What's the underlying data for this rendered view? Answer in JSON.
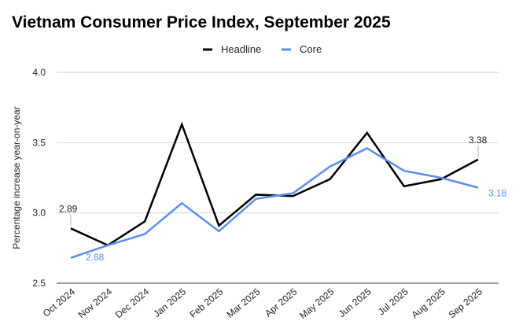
{
  "chart_data": {
    "type": "line",
    "title": "Vietnam Consumer Price Index, September 2025",
    "xlabel": "",
    "ylabel": "Percentage increase year-on-year",
    "ylim": [
      2.5,
      4.0
    ],
    "yticks": [
      "2.5",
      "3.0",
      "3.5",
      "4.0"
    ],
    "grid": true,
    "legend_position": "top",
    "categories": [
      "Oct 2024",
      "Nov 2024",
      "Dec 2024",
      "Jan 2025",
      "Feb 2025",
      "Mar 2025",
      "Apr 2025",
      "May 2025",
      "Jun 2025",
      "Jul 2025",
      "Aug 2025",
      "Sep 2025"
    ],
    "series": [
      {
        "name": "Headline",
        "color": "#000000",
        "values": [
          2.89,
          2.77,
          2.94,
          3.63,
          2.91,
          3.13,
          3.12,
          3.24,
          3.57,
          3.19,
          3.24,
          3.38
        ],
        "labels": [
          {
            "index": 0,
            "text": "2.89"
          },
          {
            "index": 11,
            "text": "3.38"
          }
        ]
      },
      {
        "name": "Core",
        "color": "#5b8def",
        "values": [
          2.68,
          2.77,
          2.85,
          3.07,
          2.87,
          3.1,
          3.14,
          3.33,
          3.46,
          3.3,
          3.25,
          3.18
        ],
        "labels": [
          {
            "index": 0,
            "text": "2.68"
          },
          {
            "index": 11,
            "text": "3.18"
          }
        ]
      }
    ]
  }
}
